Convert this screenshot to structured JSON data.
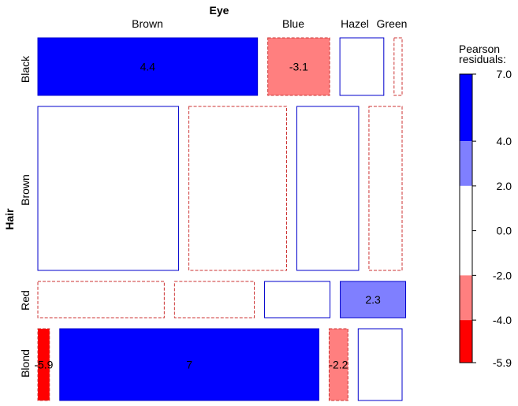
{
  "chart_data": {
    "type": "mosaic",
    "row_variable": "Hair",
    "col_variable": "Eye",
    "row_categories": [
      "Black",
      "Brown",
      "Red",
      "Blond"
    ],
    "col_categories": [
      "Brown",
      "Blue",
      "Hazel",
      "Green"
    ],
    "row_shares": [
      0.18,
      0.48,
      0.12,
      0.22
    ],
    "cells": [
      {
        "hair": "Black",
        "eye": "Brown",
        "share": 0.63,
        "residual": 4.4,
        "label": "4.4"
      },
      {
        "hair": "Black",
        "eye": "Blue",
        "share": 0.19,
        "residual": -3.1,
        "label": "-3.1"
      },
      {
        "hair": "Black",
        "eye": "Hazel",
        "share": 0.14,
        "residual": 0.0,
        "label": ""
      },
      {
        "hair": "Black",
        "eye": "Green",
        "share": 0.04,
        "residual": -0.1,
        "label": ""
      },
      {
        "hair": "Brown",
        "eye": "Brown",
        "share": 0.41,
        "residual": 1.2,
        "label": ""
      },
      {
        "hair": "Brown",
        "eye": "Blue",
        "share": 0.29,
        "residual": -1.0,
        "label": ""
      },
      {
        "hair": "Brown",
        "eye": "Hazel",
        "share": 0.19,
        "residual": 1.3,
        "label": ""
      },
      {
        "hair": "Brown",
        "eye": "Green",
        "share": 0.11,
        "residual": -0.4,
        "label": ""
      },
      {
        "hair": "Red",
        "eye": "Brown",
        "share": 0.37,
        "residual": -0.1,
        "label": ""
      },
      {
        "hair": "Red",
        "eye": "Blue",
        "share": 0.24,
        "residual": -1.7,
        "label": ""
      },
      {
        "hair": "Red",
        "eye": "Hazel",
        "share": 0.2,
        "residual": 0.8,
        "label": ""
      },
      {
        "hair": "Red",
        "eye": "Green",
        "share": 0.2,
        "residual": 2.3,
        "label": "2.3"
      },
      {
        "hair": "Blond",
        "eye": "Brown",
        "share": 0.05,
        "residual": -5.9,
        "label": "-5.9"
      },
      {
        "hair": "Blond",
        "eye": "Blue",
        "share": 0.74,
        "residual": 7.0,
        "label": "7"
      },
      {
        "hair": "Blond",
        "eye": "Hazel",
        "share": 0.07,
        "residual": -2.2,
        "label": "-2.2"
      },
      {
        "hair": "Blond",
        "eye": "Green",
        "share": 0.14,
        "residual": 0.6,
        "label": ""
      }
    ],
    "legend": {
      "title": [
        "Pearson",
        "residuals:"
      ],
      "ticks": [
        "7.0",
        "4.0",
        "2.0",
        "0.0",
        "-2.0",
        "-4.0",
        "-5.9"
      ],
      "bands": [
        {
          "from": 4.0,
          "to": 7.0,
          "color": "#0000ff"
        },
        {
          "from": 2.0,
          "to": 4.0,
          "color": "#7f7fff"
        },
        {
          "from": -2.0,
          "to": 2.0,
          "color": "#ffffff"
        },
        {
          "from": -4.0,
          "to": -2.0,
          "color": "#ff7f7f"
        },
        {
          "from": -5.9,
          "to": -4.0,
          "color": "#ff0000"
        }
      ],
      "placement": "right"
    },
    "colors": {
      "positive_strong": "#0000ff",
      "positive_mid": "#7f7fff",
      "neutral": "#ffffff",
      "negative_mid": "#ff7f7f",
      "negative_strong": "#ff0000",
      "positive_border": "#0000cc",
      "negative_border": "#cc3333"
    }
  }
}
